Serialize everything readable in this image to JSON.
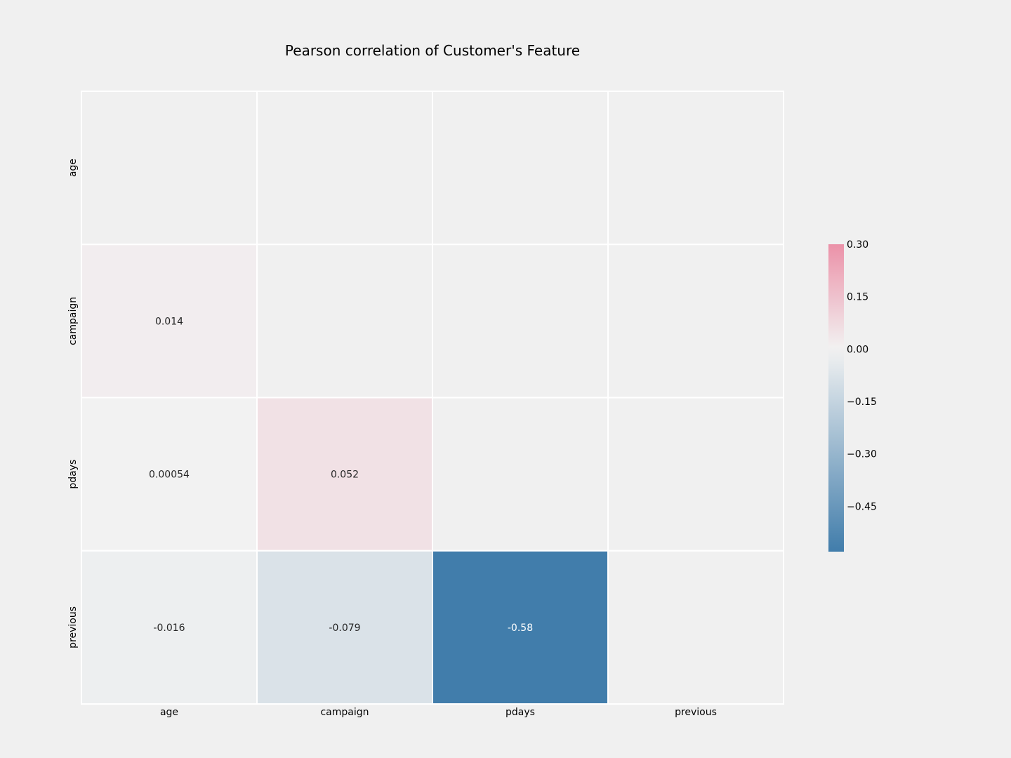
{
  "chart_data": {
    "type": "heatmap",
    "title": "Pearson correlation of Customer's Feature",
    "xlabel": "",
    "ylabel": "",
    "x_categories": [
      "age",
      "campaign",
      "pdays",
      "previous"
    ],
    "y_categories": [
      "age",
      "campaign",
      "pdays",
      "previous"
    ],
    "mask": "upper triangle including diagonal (blank)",
    "cells": [
      {
        "row": "campaign",
        "col": "age",
        "value": 0.014,
        "label": "0.014"
      },
      {
        "row": "pdays",
        "col": "age",
        "value": 0.00054,
        "label": "0.00054"
      },
      {
        "row": "pdays",
        "col": "campaign",
        "value": 0.052,
        "label": "0.052"
      },
      {
        "row": "previous",
        "col": "age",
        "value": -0.016,
        "label": "-0.016"
      },
      {
        "row": "previous",
        "col": "campaign",
        "value": -0.079,
        "label": "-0.079"
      },
      {
        "row": "previous",
        "col": "pdays",
        "value": -0.58,
        "label": "-0.58"
      }
    ],
    "colorbar": {
      "range": [
        -0.58,
        0.3
      ],
      "ticks": [
        0.3,
        0.15,
        0.0,
        -0.15,
        -0.3,
        -0.45
      ],
      "tick_labels": [
        "0.30",
        "0.15",
        "0.00",
        "−0.15",
        "−0.30",
        "−0.45"
      ],
      "colors": {
        "negative": "#417dab",
        "center": "#f2f2f2",
        "positive": "#eb91a8"
      }
    },
    "grid": true,
    "legend": "colorbar right"
  },
  "colors": {
    "background": "#f0f0f0",
    "masked_cell": "#f0f0f0",
    "cell_border": "#ffffff",
    "text_dark": "#262626",
    "text_light": "#ffffff"
  }
}
